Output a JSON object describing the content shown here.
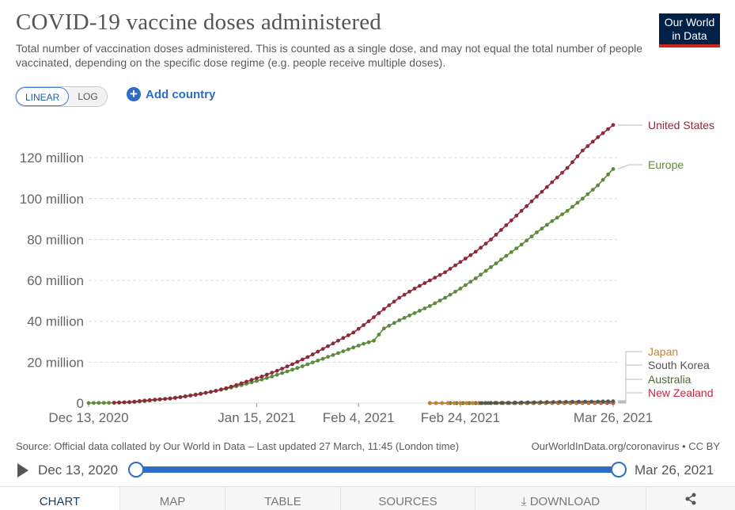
{
  "header": {
    "title": "COVID-19 vaccine doses administered",
    "subtitle": "Total number of vaccination doses administered. This is counted as a single dose, and may not equal the total number of people vaccinated, depending on the specific dose regime (e.g. people receive multiple doses).",
    "logo_line1": "Our World",
    "logo_line2": "in Data"
  },
  "controls": {
    "linear_label": "LINEAR",
    "log_label": "LOG",
    "add_country_label": "Add country"
  },
  "colors": {
    "united_states": "#8c2a3a",
    "europe": "#5d8a3c",
    "japan": "#c48236",
    "south_korea": "#555555",
    "australia": "#4c6a2f",
    "new_zealand": "#c8263c",
    "accent": "#2e6cc6"
  },
  "chart_data": {
    "type": "line",
    "title": "COVID-19 vaccine doses administered",
    "xlabel": "",
    "ylabel": "",
    "x_start": "2020-12-13",
    "x_end": "2021-03-26",
    "total_days": 103,
    "ylim": [
      0,
      135
    ],
    "y_unit": "million",
    "y_ticks": [
      {
        "value": 0,
        "label": "0"
      },
      {
        "value": 20,
        "label": "20 million"
      },
      {
        "value": 40,
        "label": "40 million"
      },
      {
        "value": 60,
        "label": "60 million"
      },
      {
        "value": 80,
        "label": "80 million"
      },
      {
        "value": 100,
        "label": "100 million"
      },
      {
        "value": 120,
        "label": "120 million"
      }
    ],
    "x_ticks": [
      {
        "day": 0,
        "label": "Dec 13, 2020"
      },
      {
        "day": 33,
        "label": "Jan 15, 2021"
      },
      {
        "day": 53,
        "label": "Feb 4, 2021"
      },
      {
        "day": 73,
        "label": "Feb 24, 2021"
      },
      {
        "day": 103,
        "label": "Mar 26, 2021"
      }
    ],
    "series": [
      {
        "name": "United States",
        "key": "united_states",
        "points": [
          [
            5,
            0.2
          ],
          [
            8,
            0.5
          ],
          [
            10,
            1.0
          ],
          [
            13,
            1.7
          ],
          [
            16,
            2.2
          ],
          [
            19,
            3.2
          ],
          [
            22,
            4.5
          ],
          [
            25,
            6.0
          ],
          [
            28,
            8.0
          ],
          [
            31,
            10.5
          ],
          [
            34,
            13.0
          ],
          [
            37,
            15.8
          ],
          [
            40,
            19.0
          ],
          [
            43,
            22.5
          ],
          [
            46,
            26.5
          ],
          [
            49,
            30.5
          ],
          [
            52,
            34.5
          ],
          [
            55,
            40.0
          ],
          [
            58,
            46.0
          ],
          [
            61,
            51.5
          ],
          [
            64,
            56.0
          ],
          [
            67,
            60.0
          ],
          [
            70,
            64.0
          ],
          [
            73,
            69.0
          ],
          [
            76,
            74.0
          ],
          [
            79,
            80.0
          ],
          [
            82,
            87.0
          ],
          [
            85,
            94.0
          ],
          [
            88,
            101.0
          ],
          [
            91,
            108.0
          ],
          [
            94,
            115.0
          ],
          [
            97,
            123.5
          ],
          [
            100,
            130.0
          ],
          [
            103,
            136.0
          ]
        ]
      },
      {
        "name": "Europe",
        "key": "europe",
        "points": [
          [
            0,
            0.05
          ],
          [
            3,
            0.1
          ],
          [
            6,
            0.2
          ],
          [
            9,
            0.5
          ],
          [
            12,
            1.2
          ],
          [
            15,
            2.0
          ],
          [
            18,
            3.0
          ],
          [
            21,
            4.2
          ],
          [
            24,
            5.5
          ],
          [
            27,
            7.0
          ],
          [
            30,
            8.8
          ],
          [
            33,
            10.8
          ],
          [
            36,
            13.0
          ],
          [
            39,
            15.5
          ],
          [
            42,
            18.0
          ],
          [
            45,
            20.8
          ],
          [
            48,
            23.5
          ],
          [
            51,
            26.3
          ],
          [
            54,
            29.0
          ],
          [
            56,
            30.5
          ],
          [
            58,
            36.5
          ],
          [
            61,
            40.5
          ],
          [
            64,
            44.0
          ],
          [
            67,
            47.5
          ],
          [
            70,
            51.5
          ],
          [
            73,
            56.0
          ],
          [
            76,
            61.0
          ],
          [
            79,
            66.5
          ],
          [
            82,
            72.0
          ],
          [
            85,
            77.5
          ],
          [
            88,
            83.5
          ],
          [
            91,
            89.0
          ],
          [
            94,
            94.0
          ],
          [
            97,
            100.0
          ],
          [
            100,
            106.5
          ],
          [
            103,
            114.5
          ]
        ]
      },
      {
        "name": "Japan",
        "key": "japan",
        "points": [
          [
            67,
            0.0
          ],
          [
            73,
            0.02
          ],
          [
            79,
            0.06
          ],
          [
            85,
            0.12
          ],
          [
            91,
            0.2
          ],
          [
            97,
            0.3
          ],
          [
            103,
            0.45
          ]
        ]
      },
      {
        "name": "South Korea",
        "key": "south_korea",
        "points": [
          [
            77,
            0.0
          ],
          [
            80,
            0.1
          ],
          [
            85,
            0.3
          ],
          [
            90,
            0.5
          ],
          [
            95,
            0.65
          ],
          [
            100,
            0.75
          ],
          [
            103,
            0.9
          ]
        ]
      },
      {
        "name": "Australia",
        "key": "australia",
        "points": [
          [
            71,
            0.0
          ],
          [
            76,
            0.01
          ],
          [
            81,
            0.03
          ],
          [
            86,
            0.06
          ],
          [
            91,
            0.1
          ],
          [
            97,
            0.2
          ],
          [
            103,
            0.35
          ]
        ]
      },
      {
        "name": "New Zealand",
        "key": "new_zealand",
        "points": [
          [
            67,
            0.0
          ],
          [
            73,
            0.002
          ],
          [
            79,
            0.005
          ],
          [
            85,
            0.01
          ],
          [
            91,
            0.015
          ],
          [
            97,
            0.02
          ],
          [
            103,
            0.03
          ]
        ]
      }
    ],
    "legend": [
      {
        "name": "United States",
        "key": "united_states"
      },
      {
        "name": "Europe",
        "key": "europe"
      },
      {
        "name": "Japan",
        "key": "japan"
      },
      {
        "name": "South Korea",
        "key": "south_korea"
      },
      {
        "name": "Australia",
        "key": "australia"
      },
      {
        "name": "New Zealand",
        "key": "new_zealand"
      }
    ]
  },
  "footer": {
    "source_text": "Source: Official data collated by Our World in Data – Last updated 27 March, 11:45 (London time)",
    "license_text": "OurWorldInData.org/coronavirus • CC BY"
  },
  "timeline": {
    "start_label": "Dec 13, 2020",
    "end_label": "Mar 26, 2021"
  },
  "tabs": [
    {
      "label": "CHART",
      "active": true
    },
    {
      "label": "MAP",
      "active": false
    },
    {
      "label": "TABLE",
      "active": false
    },
    {
      "label": "SOURCES",
      "active": false
    },
    {
      "label": "⤓ DOWNLOAD",
      "active": false
    },
    {
      "label": "share",
      "active": false
    }
  ]
}
